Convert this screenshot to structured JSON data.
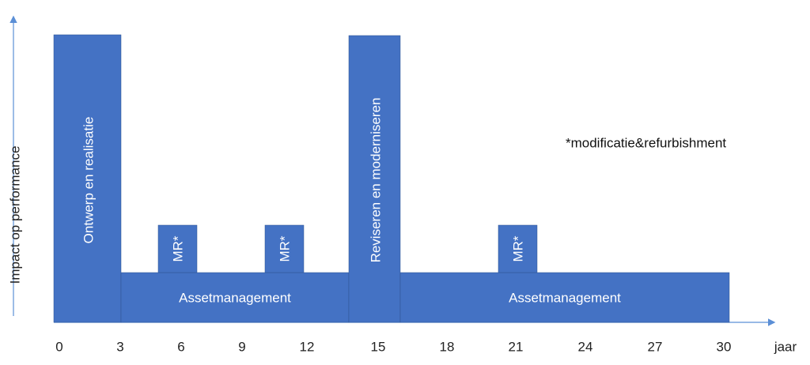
{
  "y_axis_label": "Impact op performance",
  "x_axis": {
    "ticks": [
      "0",
      "3",
      "6",
      "9",
      "12",
      "15",
      "18",
      "21",
      "24",
      "27",
      "30"
    ],
    "unit": "jaar"
  },
  "blocks": [
    {
      "label": "Ontwerp en realisatie"
    },
    {
      "label": "Assetmanagement"
    },
    {
      "label": "MR*"
    },
    {
      "label": "MR*"
    },
    {
      "label": "Reviseren en moderniseren"
    },
    {
      "label": "Assetmanagement"
    },
    {
      "label": "MR*"
    }
  ],
  "note": "*modificatie&refurbishment"
}
